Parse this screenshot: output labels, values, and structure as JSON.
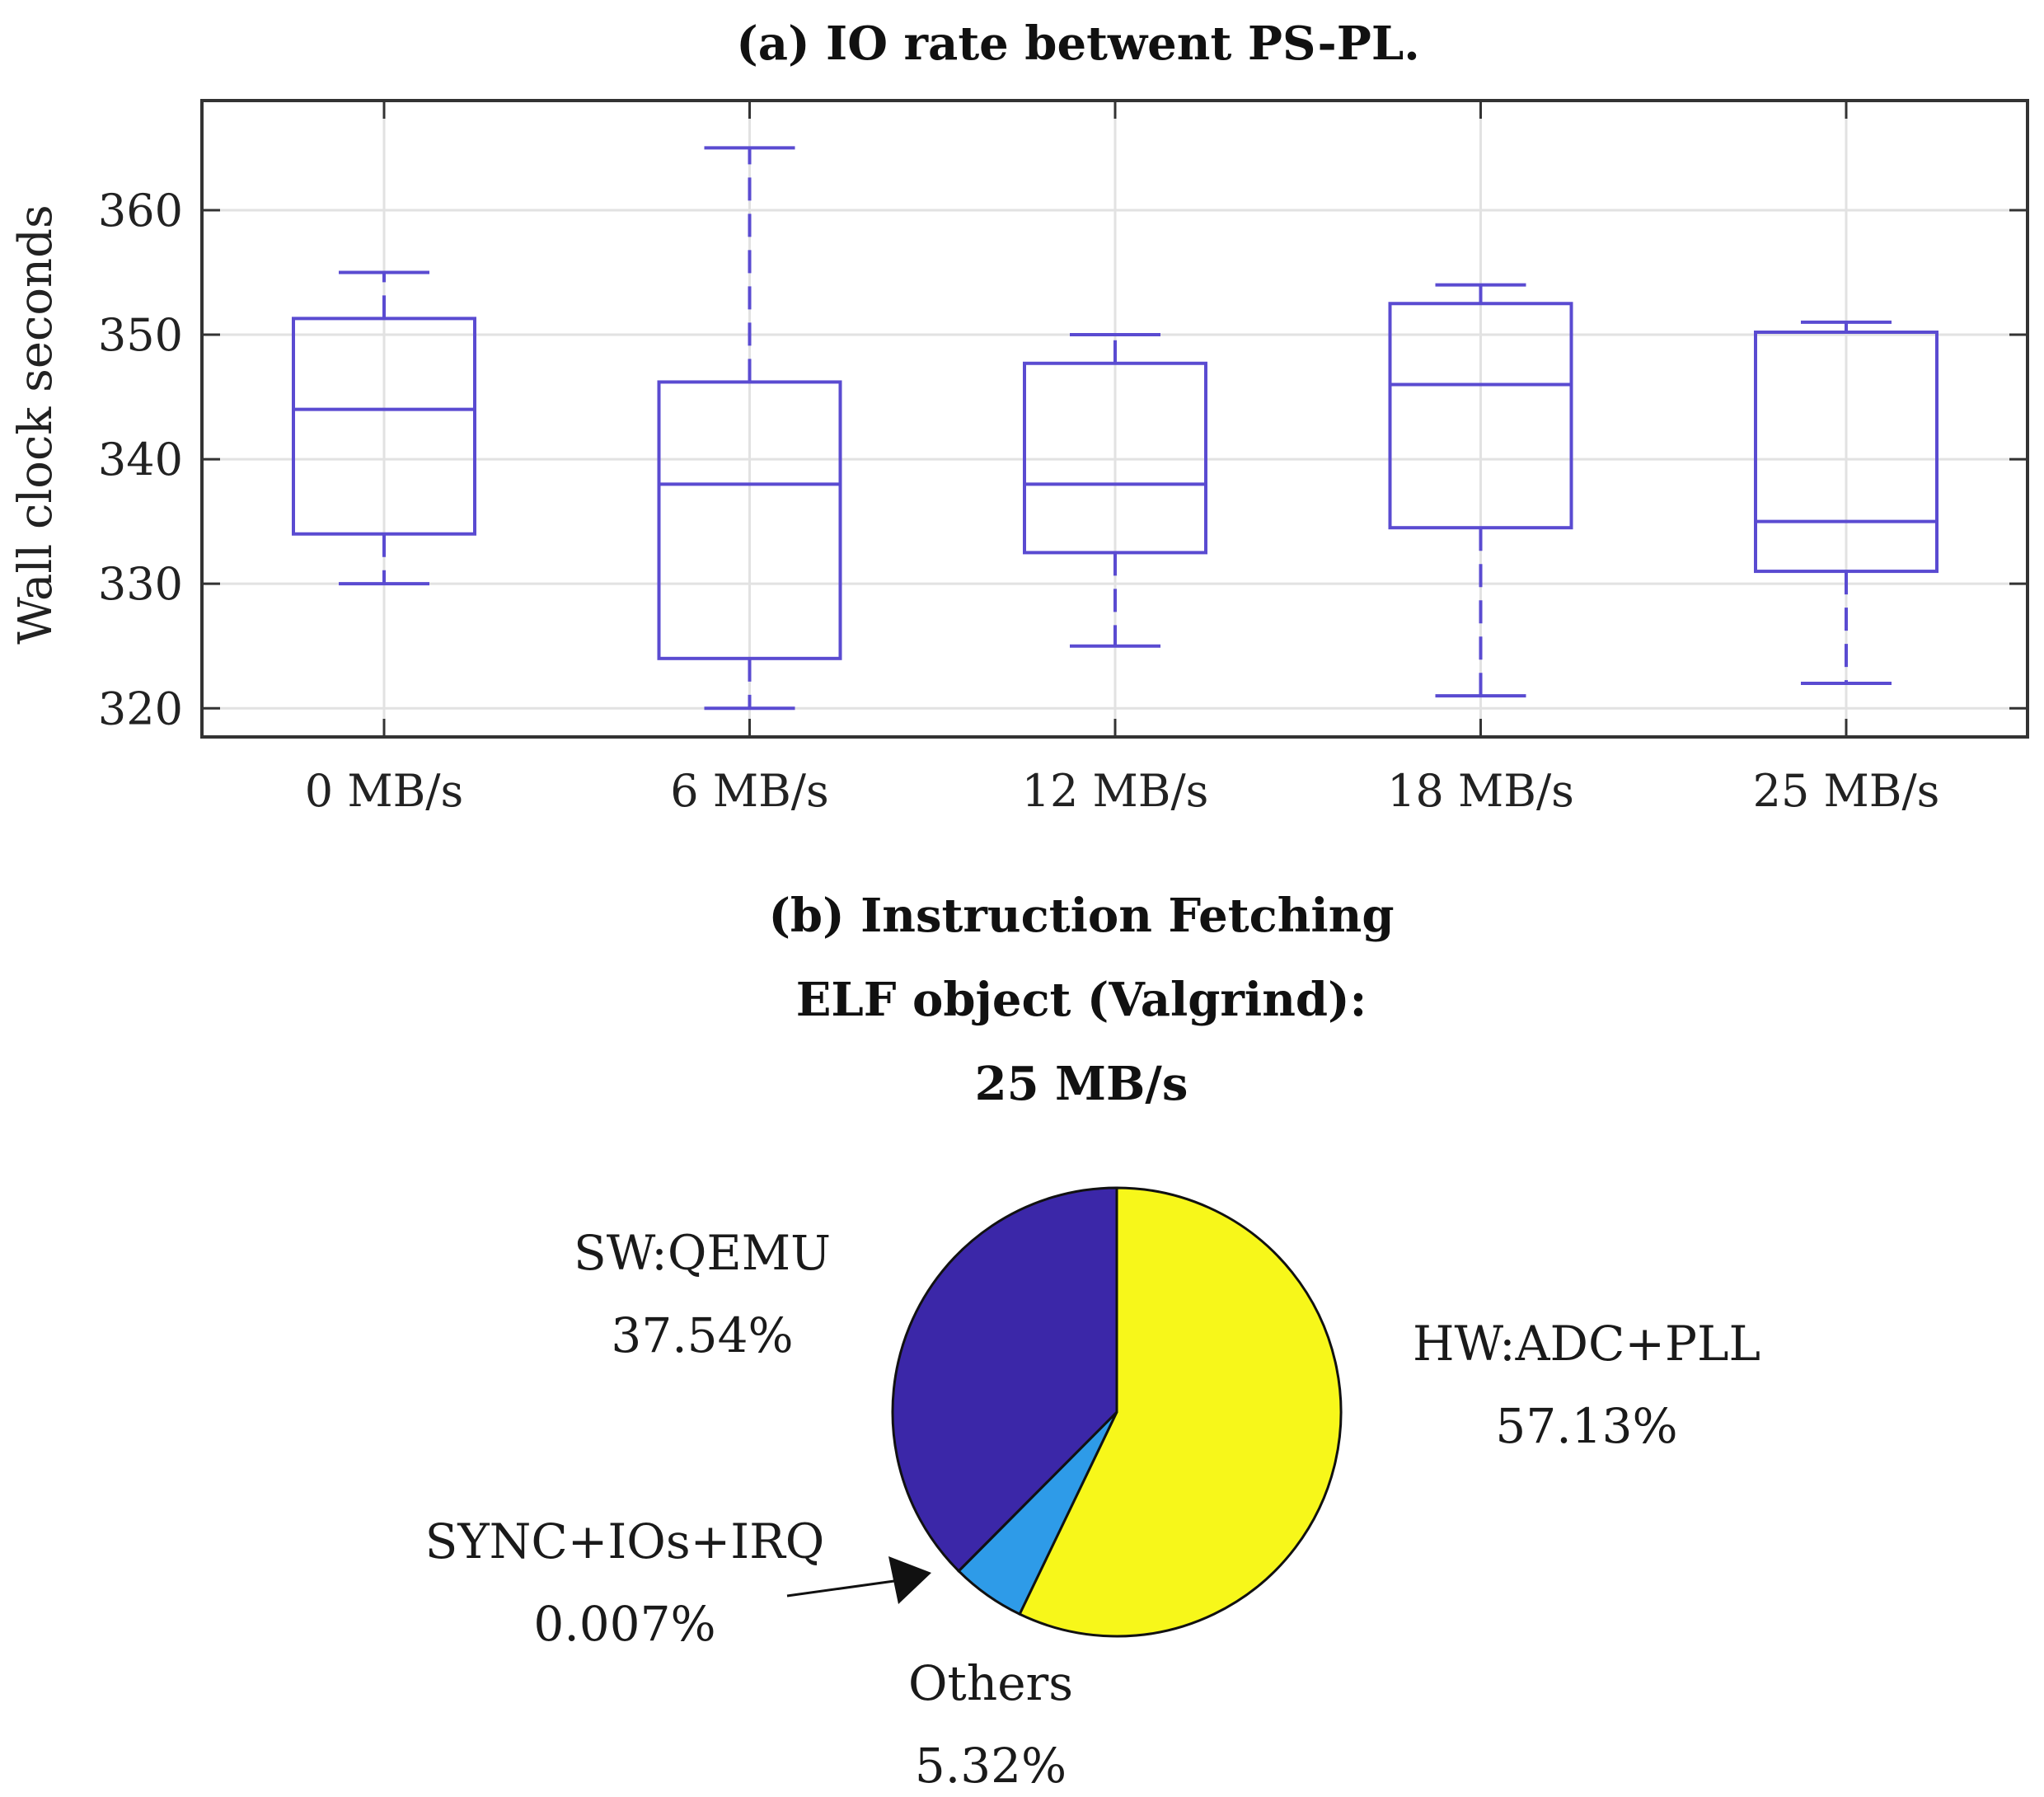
{
  "chart_data": [
    {
      "type": "box",
      "title": "(a) IO rate betwent PS-PL.",
      "xlabel": "",
      "ylabel": "Wall clock seconds",
      "categories": [
        "0 MB/s",
        "6 MB/s",
        "12 MB/s",
        "18 MB/s",
        "25 MB/s"
      ],
      "yticks": [
        "320",
        "330",
        "340",
        "350",
        "360"
      ],
      "ylim": [
        317.7,
        368.8
      ],
      "grid": true,
      "boxes": [
        {
          "whisker_low": 330,
          "q1": 334,
          "median": 344,
          "q3": 351.3,
          "whisker_high": 355
        },
        {
          "whisker_low": 320,
          "q1": 324,
          "median": 338,
          "q3": 346.2,
          "whisker_high": 365
        },
        {
          "whisker_low": 325,
          "q1": 332.5,
          "median": 338,
          "q3": 347.7,
          "whisker_high": 350
        },
        {
          "whisker_low": 321,
          "q1": 334.5,
          "median": 346,
          "q3": 352.5,
          "whisker_high": 354
        },
        {
          "whisker_low": 322,
          "q1": 331,
          "median": 335,
          "q3": 350.2,
          "whisker_high": 351
        }
      ],
      "color": "#5a4bd1"
    },
    {
      "type": "pie",
      "title_lines": [
        "(b) Instruction Fetching",
        "ELF object (Valgrind):",
        "25 MB/s"
      ],
      "slices": [
        {
          "name": "HW:ADC+PLL",
          "pct_label": "57.13%",
          "value": 57.13,
          "color": "#f7f71a"
        },
        {
          "name": "Others",
          "pct_label": "5.32%",
          "value": 5.32,
          "color": "#2e9be8"
        },
        {
          "name": "SYNC+IOs+IRQ",
          "pct_label": "0.007%",
          "value": 0.007,
          "color": "#2e2ea8"
        },
        {
          "name": "SW:QEMU",
          "pct_label": "37.54%",
          "value": 37.54,
          "color": "#3b27a8"
        }
      ]
    }
  ]
}
